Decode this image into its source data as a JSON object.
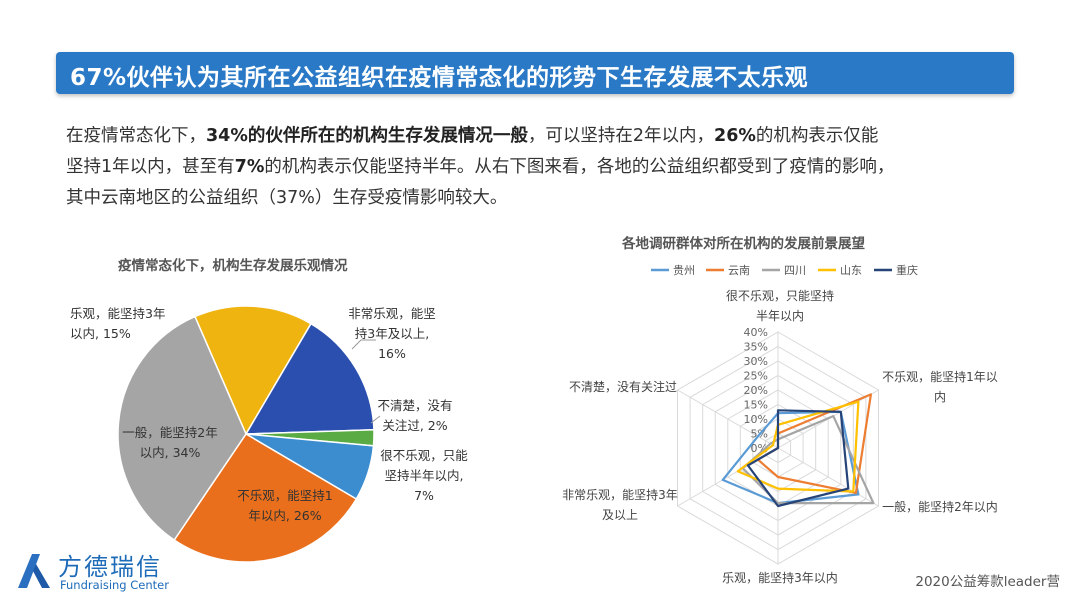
{
  "header": {
    "title": "67%伙伴认为其所在公益组织在疫情常态化的形势下生存发展不太乐观"
  },
  "intro": {
    "line1_a": "在疫情常态化下，",
    "line1_b": "34%的伙伴所在的机构生存发展情况一般",
    "line1_c": "，可以坚持在2年以内，",
    "line1_d": "26%",
    "line1_e": "的机构表示仅能",
    "line2_a": "坚持1年以内，甚至有",
    "line2_b": "7%",
    "line2_c": "的机构表示仅能坚持半年。从右下图来看，各地的公益组织都受到了疫情的影响，",
    "line3": "其中云南地区的公益组织（37%）生存受疫情影响较大。"
  },
  "colors": {
    "title_bar": "#2979c6",
    "pie": [
      "#f0b411",
      "#2a4fae",
      "#5aab44",
      "#3b8dd0",
      "#ea6f1c",
      "#a5a5a5"
    ],
    "radar": [
      "#5b9bd5",
      "#ed7d31",
      "#a5a5a5",
      "#ffc000",
      "#264478"
    ]
  },
  "chart_data": [
    {
      "type": "pie",
      "title": "疫情常态化下，机构生存发展乐观情况",
      "slices": [
        {
          "label": "乐观，能坚持3年以内, 15%",
          "value": 15
        },
        {
          "label": "非常乐观，能坚持3年及以上, 16%",
          "value": 16
        },
        {
          "label": "不清楚，没有关注过, 2%",
          "value": 2
        },
        {
          "label": "很不乐观，只能坚持半年以内, 7%",
          "value": 7
        },
        {
          "label": "不乐观，能坚持1年以内, 26%",
          "value": 26
        },
        {
          "label": "一般，能坚持2年以内, 34%",
          "value": 34
        }
      ]
    },
    {
      "type": "radar",
      "title": "各地调研群体对所在机构的发展前景展望",
      "axes": [
        "很不乐观，只能坚持半年以内",
        "不乐观，能坚持1年以内",
        "一般，能坚持2年以内",
        "乐观，能坚持3年以内",
        "非常乐观，能坚持3年及以上",
        "不清楚，没有关注过"
      ],
      "ticks": [
        "0%",
        "5%",
        "10%",
        "15%",
        "20%",
        "25%",
        "30%",
        "35%",
        "40%"
      ],
      "rmax": 40,
      "series": [
        {
          "name": "贵州",
          "values": [
            12,
            25,
            32,
            19,
            22,
            8
          ]
        },
        {
          "name": "云南",
          "values": [
            5,
            37,
            31,
            10,
            8,
            0
          ]
        },
        {
          "name": "四川",
          "values": [
            3,
            22,
            38,
            19,
            14,
            3
          ]
        },
        {
          "name": "山东",
          "values": [
            8,
            32,
            30,
            14,
            16,
            2
          ]
        },
        {
          "name": "重庆",
          "values": [
            13,
            25,
            28,
            20,
            12,
            0
          ]
        }
      ]
    }
  ],
  "pie_labels": [
    {
      "l1": "乐观，能坚持3年",
      "l2": "以内, 15%"
    },
    {
      "l1": "非常乐观，能坚",
      "l2": "持3年及以上,",
      "l3": "16%"
    },
    {
      "l1": "不清楚，没有",
      "l2": "关注过, 2%"
    },
    {
      "l1": "很不乐观，只能",
      "l2": "坚持半年以内,",
      "l3": "7%"
    },
    {
      "l1": "不乐观，能坚持1",
      "l2": "年以内, 26%"
    },
    {
      "l1": "一般，能坚持2年",
      "l2": "以内, 34%"
    }
  ],
  "radar_labels": [
    {
      "l1": "很不乐观，只能坚持",
      "l2": "半年以内"
    },
    {
      "l1": "不乐观，能坚持1年以",
      "l2": "内"
    },
    {
      "l1": "一般，能坚持2年以内"
    },
    {
      "l1": "乐观，能坚持3年以内"
    },
    {
      "l1": "非常乐观，能坚持3年",
      "l2": "及以上"
    },
    {
      "l1": "不清楚，没有关注过"
    }
  ],
  "logo": {
    "name_cn": "方德瑞信",
    "name_en": "Fundraising Center"
  },
  "footer": {
    "note": "2020公益筹款leader营"
  }
}
